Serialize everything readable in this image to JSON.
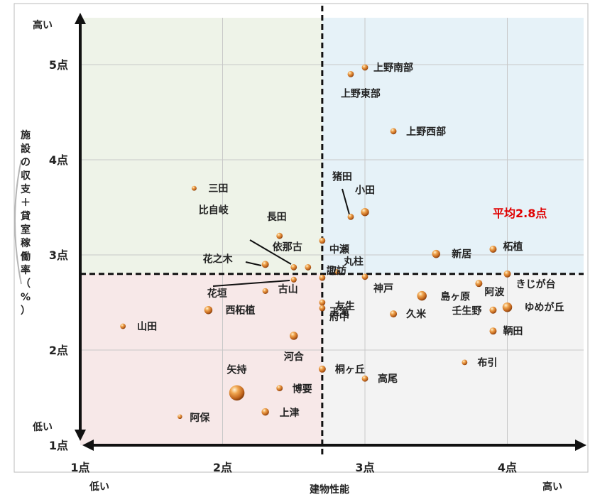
{
  "chart_data": {
    "type": "scatter",
    "xlabel": "建物性能",
    "ylabel": "施設の収支＋貸室稼働率（%）",
    "xlim": [
      1,
      4.5
    ],
    "ylim": [
      1,
      5.5
    ],
    "x_ticks": [
      {
        "v": 1,
        "label": "1点"
      },
      {
        "v": 2,
        "label": "2点"
      },
      {
        "v": 3,
        "label": "3点"
      },
      {
        "v": 4,
        "label": "4点"
      }
    ],
    "y_ticks": [
      {
        "v": 1,
        "label": "1点"
      },
      {
        "v": 2,
        "label": "2点"
      },
      {
        "v": 3,
        "label": "3点"
      },
      {
        "v": 4,
        "label": "4点"
      },
      {
        "v": 5,
        "label": "5点"
      }
    ],
    "x_low_label": "低い",
    "x_high_label": "高い",
    "y_low_label": "低い",
    "y_high_label": "高い",
    "average": {
      "x": 2.7,
      "y": 2.8,
      "label": "平均2.8点"
    },
    "colors": {
      "q_top_left": "#eef3e8",
      "q_top_right": "#e6f2f8",
      "q_bottom_left": "#f7e8e8",
      "q_bottom_right": "#f3f3f3",
      "bubble": "#d9822b",
      "average_label": "#e00000"
    },
    "points": [
      {
        "name": "上野南部",
        "x": 3.0,
        "y": 4.97,
        "size": 1
      },
      {
        "name": "上野東部",
        "x": 2.9,
        "y": 4.9,
        "size": 1
      },
      {
        "name": "上野西部",
        "x": 3.2,
        "y": 4.3,
        "size": 1
      },
      {
        "name": "三田",
        "x": 1.8,
        "y": 3.7,
        "size": 0.5
      },
      {
        "name": "猪田",
        "x": 2.9,
        "y": 3.4,
        "size": 1
      },
      {
        "name": "小田",
        "x": 3.0,
        "y": 3.45,
        "size": 2
      },
      {
        "name": "長田",
        "x": 2.4,
        "y": 3.2,
        "size": 1
      },
      {
        "name": "中瀬",
        "x": 2.7,
        "y": 3.15,
        "size": 1
      },
      {
        "name": "比自岐",
        "x": 2.5,
        "y": 2.87,
        "size": 1
      },
      {
        "name": "依那古",
        "x": 2.6,
        "y": 2.87,
        "size": 1
      },
      {
        "name": "諏訪",
        "x": 2.7,
        "y": 2.76,
        "size": 1
      },
      {
        "name": "花之木",
        "x": 2.3,
        "y": 2.9,
        "size": 1.4
      },
      {
        "name": "丸柱",
        "x": 2.8,
        "y": 2.82,
        "size": 0.8
      },
      {
        "name": "新居",
        "x": 3.5,
        "y": 3.01,
        "size": 2
      },
      {
        "name": "柘植",
        "x": 3.9,
        "y": 3.06,
        "size": 1.4
      },
      {
        "name": "きじが台",
        "x": 4.0,
        "y": 2.8,
        "size": 1.4
      },
      {
        "name": "花垣",
        "x": 2.5,
        "y": 2.74,
        "size": 0.8
      },
      {
        "name": "古山",
        "x": 2.3,
        "y": 2.62,
        "size": 0.8
      },
      {
        "name": "神戸",
        "x": 3.0,
        "y": 2.77,
        "size": 1
      },
      {
        "name": "阿波",
        "x": 3.8,
        "y": 2.7,
        "size": 1.4
      },
      {
        "name": "玉滝",
        "x": 2.7,
        "y": 2.5,
        "size": 1
      },
      {
        "name": "友生",
        "x": 2.7,
        "y": 2.44,
        "size": 1
      },
      {
        "name": "府中",
        "x": 2.7,
        "y": 2.44,
        "size": 0.8
      },
      {
        "name": "島ヶ原",
        "x": 3.4,
        "y": 2.57,
        "size": 3
      },
      {
        "name": "久米",
        "x": 3.2,
        "y": 2.38,
        "size": 1.4
      },
      {
        "name": "壬生野",
        "x": 3.9,
        "y": 2.42,
        "size": 1.4
      },
      {
        "name": "ゆめが丘",
        "x": 4.0,
        "y": 2.45,
        "size": 3
      },
      {
        "name": "西柘植",
        "x": 1.9,
        "y": 2.42,
        "size": 2
      },
      {
        "name": "山田",
        "x": 1.3,
        "y": 2.25,
        "size": 0.7
      },
      {
        "name": "河合",
        "x": 2.5,
        "y": 2.15,
        "size": 2
      },
      {
        "name": "鞆田",
        "x": 3.9,
        "y": 2.2,
        "size": 1.4
      },
      {
        "name": "布引",
        "x": 3.7,
        "y": 1.87,
        "size": 0.7
      },
      {
        "name": "桐ヶ丘",
        "x": 2.7,
        "y": 1.8,
        "size": 1.4
      },
      {
        "name": "高尾",
        "x": 3.0,
        "y": 1.7,
        "size": 1
      },
      {
        "name": "矢持",
        "x": 2.1,
        "y": 1.55,
        "size": 9
      },
      {
        "name": "博要",
        "x": 2.4,
        "y": 1.6,
        "size": 1
      },
      {
        "name": "上津",
        "x": 2.3,
        "y": 1.35,
        "size": 1.6
      },
      {
        "name": "阿保",
        "x": 1.7,
        "y": 1.3,
        "size": 0.4
      }
    ]
  }
}
